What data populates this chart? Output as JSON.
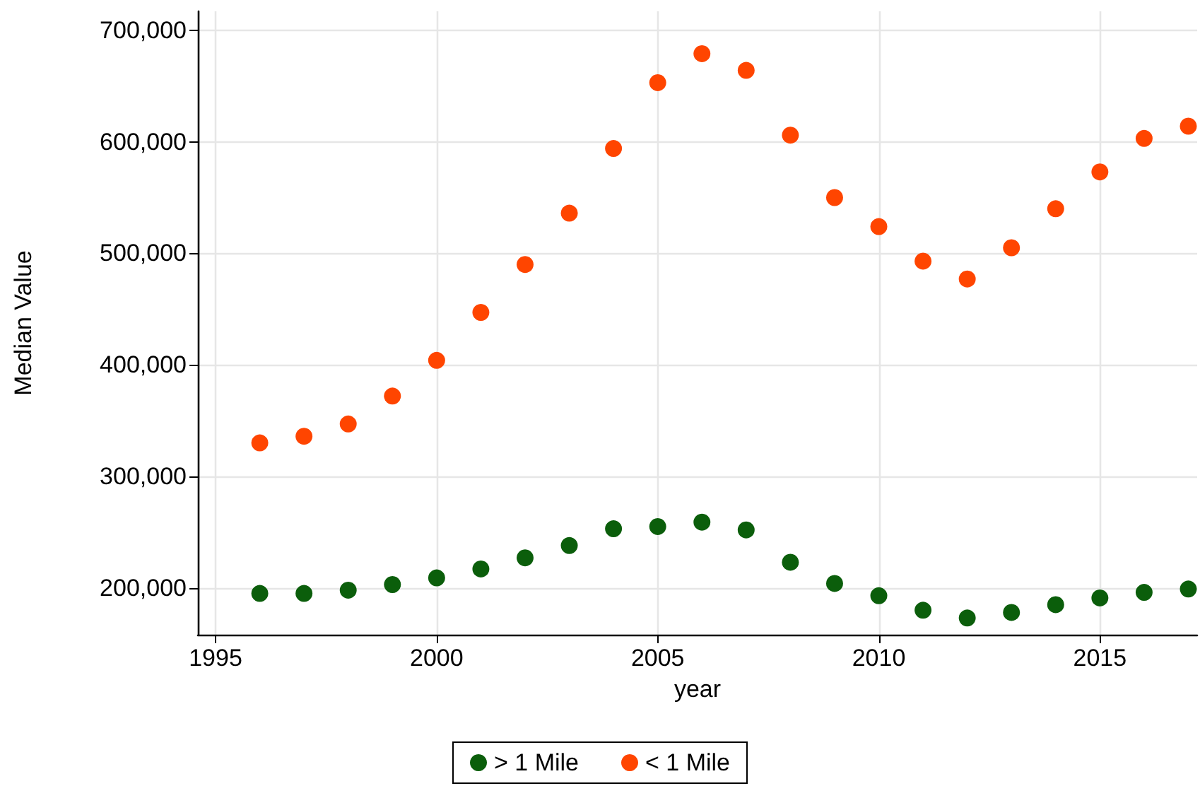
{
  "chart_data": {
    "type": "scatter",
    "xlabel": "year",
    "ylabel": "Median Value",
    "x": [
      1996,
      1997,
      1998,
      1999,
      2000,
      2001,
      2002,
      2003,
      2004,
      2005,
      2006,
      2007,
      2008,
      2009,
      2010,
      2011,
      2012,
      2013,
      2014,
      2015,
      2016,
      2017
    ],
    "series": [
      {
        "name": "> 1 Mile",
        "color": "#0b5e0b",
        "values": [
          195000,
          195000,
          198000,
          203000,
          209000,
          217000,
          227000,
          238000,
          253000,
          255000,
          259000,
          252000,
          223000,
          204000,
          193000,
          180000,
          173000,
          178000,
          185000,
          191000,
          196000,
          199000
        ]
      },
      {
        "name": "< 1 Mile",
        "color": "#ff4500",
        "values": [
          330000,
          336000,
          347000,
          372000,
          404000,
          447000,
          490000,
          536000,
          594000,
          653000,
          679000,
          664000,
          606000,
          550000,
          524000,
          493000,
          477000,
          505000,
          540000,
          573000,
          603000,
          614000
        ]
      }
    ],
    "xlim": [
      1994.6,
      2017.2
    ],
    "xticks": [
      1995,
      2000,
      2005,
      2010,
      2015
    ],
    "ylim": [
      158000,
      717000
    ],
    "yticks": [
      {
        "value": 200000,
        "label": "200,000"
      },
      {
        "value": 300000,
        "label": "300,000"
      },
      {
        "value": 400000,
        "label": "400,000"
      },
      {
        "value": 500000,
        "label": "500,000"
      },
      {
        "value": 600000,
        "label": "600,000"
      },
      {
        "value": 700000,
        "label": "700,000"
      }
    ],
    "grid": true,
    "legend": "bottom",
    "marker": "circle"
  }
}
